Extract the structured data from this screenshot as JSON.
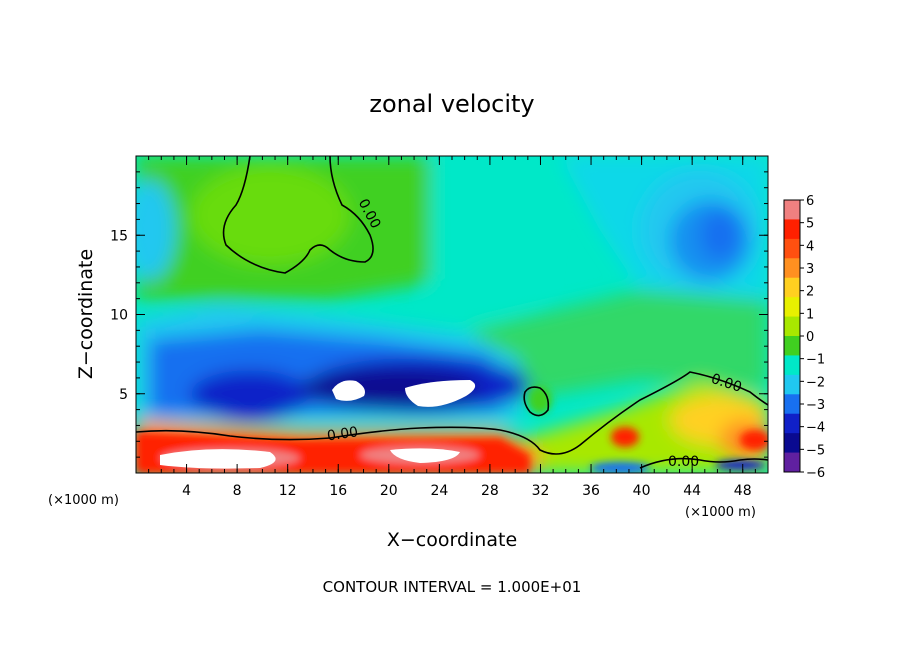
{
  "chart_data": {
    "type": "heatmap",
    "title": "zonal velocity",
    "xlabel": "X−coordinate",
    "ylabel": "Z−coordinate",
    "x_unit_label": "(×1000 m)",
    "y_unit_label": "(×1000 m)",
    "xlim": [
      0,
      50
    ],
    "ylim": [
      0,
      20
    ],
    "x_ticks": [
      4,
      8,
      12,
      16,
      20,
      24,
      28,
      32,
      36,
      40,
      44,
      48
    ],
    "y_ticks": [
      5,
      10,
      15
    ],
    "footer": "CONTOUR INTERVAL = 1.000E+01",
    "contour_label": "0.00",
    "colorbar": {
      "ticks": [
        "6",
        "5",
        "4",
        "3",
        "2",
        "1",
        "0",
        "−1",
        "−2",
        "−3",
        "−4",
        "−5",
        "−6"
      ],
      "colors": [
        "#f08080",
        "#ff2000",
        "#ff5010",
        "#ff9020",
        "#ffd020",
        "#e8f000",
        "#a8e800",
        "#40d020",
        "#00e8c8",
        "#20c8f0",
        "#1870f0",
        "#1020c8",
        "#0a0a90",
        "#6020a0"
      ],
      "range": [
        -6,
        6
      ]
    },
    "field_regions": [
      {
        "label": "upper-left green region",
        "x": [
          1,
          21
        ],
        "z": [
          12,
          20
        ],
        "value": 0.5
      },
      {
        "label": "upper-right weak negative",
        "x": [
          22,
          50
        ],
        "z": [
          8,
          20
        ],
        "value": -2
      },
      {
        "label": "right jet core",
        "x": [
          41,
          50
        ],
        "z": [
          12,
          18
        ],
        "value": -4
      },
      {
        "label": "mid-level blue band",
        "x": [
          0,
          30
        ],
        "z": [
          4,
          8
        ],
        "value": -4.5
      },
      {
        "label": "strongest core 1",
        "x": [
          15.5,
          18
        ],
        "z": [
          4.5,
          5.7
        ],
        "value": -6
      },
      {
        "label": "strongest core 2",
        "x": [
          22,
          27
        ],
        "z": [
          4,
          5.8
        ],
        "value": -6
      },
      {
        "label": "low-level positive jet",
        "x": [
          0,
          32
        ],
        "z": [
          0,
          3
        ],
        "value": 5
      },
      {
        "label": "low-level positive right",
        "x": [
          36,
          50
        ],
        "z": [
          0,
          5
        ],
        "value": 2
      }
    ]
  }
}
